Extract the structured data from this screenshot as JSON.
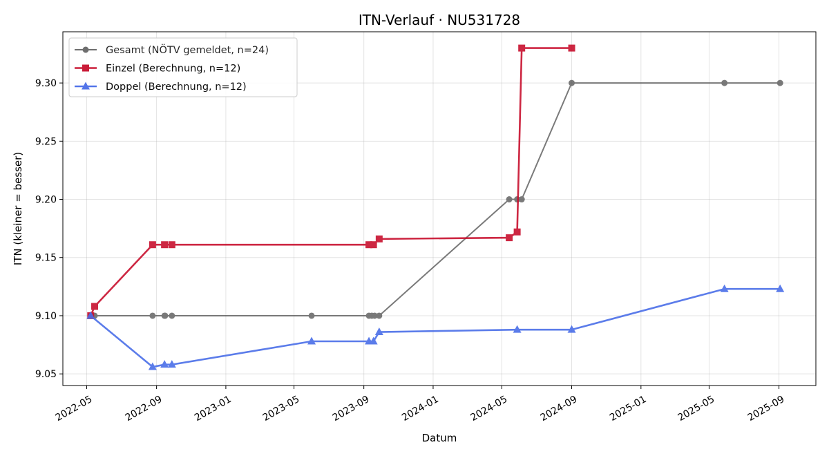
{
  "chart_data": {
    "type": "line",
    "title": "ITN-Verlauf · NU531728",
    "xlabel": "Datum",
    "ylabel": "ITN  (kleiner = besser)",
    "x_ticks": [
      "2022-05",
      "2022-09",
      "2023-01",
      "2023-05",
      "2023-09",
      "2024-01",
      "2024-05",
      "2024-09",
      "2025-01",
      "2025-05",
      "2025-09"
    ],
    "y_ticks": [
      "9.05",
      "9.10",
      "9.15",
      "9.20",
      "9.25",
      "9.30"
    ],
    "xlim": [
      "2022-03-20",
      "2025-11-05"
    ],
    "ylim": [
      9.04,
      9.344
    ],
    "grid": true,
    "legend_position": "top-left",
    "series": [
      {
        "name": "Gesamt (NÖTV gemeldet, n=24)",
        "color": "#555555",
        "marker": "circle",
        "points": [
          [
            "2022-05-08",
            9.1
          ],
          [
            "2022-05-15",
            9.1
          ],
          [
            "2022-08-25",
            9.1
          ],
          [
            "2022-09-15",
            9.1
          ],
          [
            "2022-09-16",
            9.1
          ],
          [
            "2022-09-28",
            9.1
          ],
          [
            "2023-06-01",
            9.1
          ],
          [
            "2023-09-10",
            9.1
          ],
          [
            "2023-09-15",
            9.1
          ],
          [
            "2023-09-20",
            9.1
          ],
          [
            "2023-09-28",
            9.1
          ],
          [
            "2024-05-14",
            9.2
          ],
          [
            "2024-05-28",
            9.2
          ],
          [
            "2024-06-05",
            9.2
          ],
          [
            "2024-09-01",
            9.3
          ],
          [
            "2025-05-28",
            9.3
          ],
          [
            "2025-09-03",
            9.3
          ]
        ]
      },
      {
        "name": "Einzel (Berechnung, n=12)",
        "color": "#c8102e",
        "marker": "square",
        "points": [
          [
            "2022-05-08",
            9.1
          ],
          [
            "2022-05-15",
            9.108
          ],
          [
            "2022-08-25",
            9.161
          ],
          [
            "2022-09-15",
            9.161
          ],
          [
            "2022-09-28",
            9.161
          ],
          [
            "2023-09-10",
            9.161
          ],
          [
            "2023-09-18",
            9.161
          ],
          [
            "2023-09-28",
            9.166
          ],
          [
            "2024-05-14",
            9.167
          ],
          [
            "2024-05-28",
            9.172
          ],
          [
            "2024-06-05",
            9.33
          ],
          [
            "2024-09-01",
            9.33
          ]
        ]
      },
      {
        "name": "Doppel (Berechnung, n=12)",
        "color": "#4a6ee8",
        "marker": "triangle",
        "points": [
          [
            "2022-05-08",
            9.1
          ],
          [
            "2022-08-25",
            9.056
          ],
          [
            "2022-09-15",
            9.058
          ],
          [
            "2022-09-28",
            9.058
          ],
          [
            "2023-06-01",
            9.078
          ],
          [
            "2023-09-10",
            9.078
          ],
          [
            "2023-09-18",
            9.078
          ],
          [
            "2023-09-28",
            9.086
          ],
          [
            "2024-05-28",
            9.088
          ],
          [
            "2024-09-01",
            9.088
          ],
          [
            "2025-05-28",
            9.123
          ],
          [
            "2025-09-03",
            9.123
          ]
        ]
      }
    ]
  }
}
